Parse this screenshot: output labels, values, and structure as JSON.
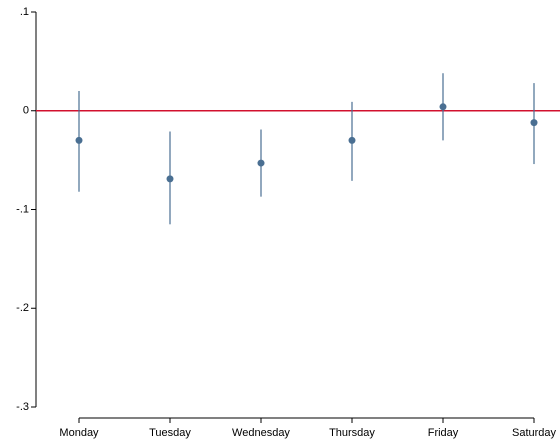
{
  "chart_data": {
    "type": "errorbar",
    "categories": [
      "Monday",
      "Tuesday",
      "Wednesday",
      "Thursday",
      "Friday",
      "Saturday"
    ],
    "series": [
      {
        "color": "#4a6f92",
        "values": [
          -0.03,
          -0.069,
          -0.053,
          -0.03,
          0.004,
          -0.012
        ],
        "lower": [
          -0.082,
          -0.115,
          -0.087,
          -0.071,
          -0.03,
          -0.054
        ],
        "upper": [
          0.02,
          -0.021,
          -0.019,
          0.009,
          0.038,
          0.028
        ]
      }
    ],
    "ylim": [
      -0.3,
      0.1
    ],
    "yticks": [
      {
        "value": 0.1,
        "label": ".1"
      },
      0,
      {
        "value": -0.1,
        "label": "-.1"
      },
      {
        "value": -0.2,
        "label": "-.2"
      },
      {
        "value": -0.3,
        "label": "-.3"
      }
    ],
    "reference_line": {
      "value": 0,
      "color": "#d2102e"
    }
  }
}
